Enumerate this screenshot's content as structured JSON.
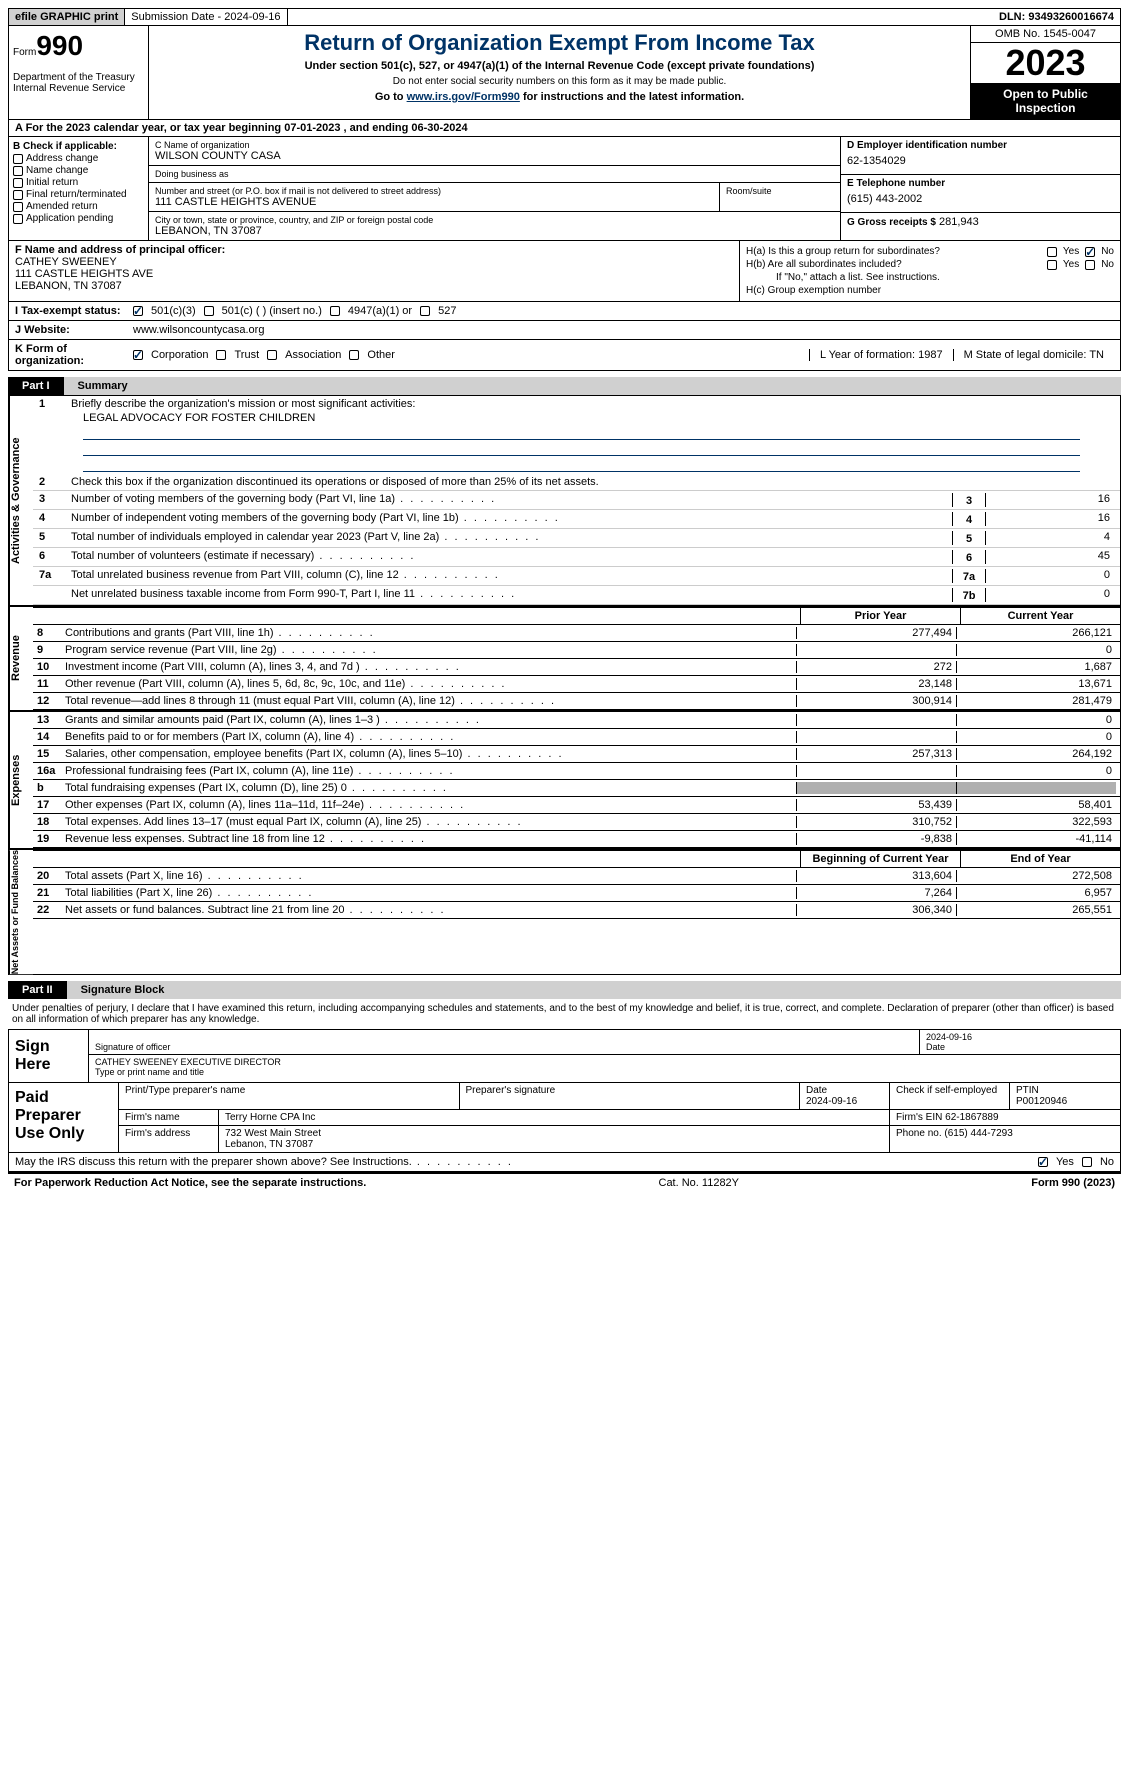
{
  "colors": {
    "accent": "#003366",
    "shade": "#b0b0b0",
    "btn_bg": "#d0d0d0"
  },
  "topbar": {
    "efile": "efile GRAPHIC print",
    "subdate": "Submission Date - 2024-09-16",
    "dln": "DLN: 93493260016674"
  },
  "header": {
    "form_prefix": "Form",
    "form_num": "990",
    "dept": "Department of the Treasury\nInternal Revenue Service",
    "title": "Return of Organization Exempt From Income Tax",
    "sub1": "Under section 501(c), 527, or 4947(a)(1) of the Internal Revenue Code (except private foundations)",
    "sub2": "Do not enter social security numbers on this form as it may be made public.",
    "sub3_pre": "Go to ",
    "sub3_link": "www.irs.gov/Form990",
    "sub3_post": " for instructions and the latest information.",
    "omb": "OMB No. 1545-0047",
    "year": "2023",
    "inspect": "Open to Public Inspection"
  },
  "period": {
    "pre": "A For the 2023 calendar year, or tax year beginning ",
    "begin": "07-01-2023",
    "mid": " , and ending ",
    "end": "06-30-2024"
  },
  "colB": {
    "hdr": "B Check if applicable:",
    "items": [
      "Address change",
      "Name change",
      "Initial return",
      "Final return/terminated",
      "Amended return",
      "Application pending"
    ]
  },
  "colC": {
    "name_lbl": "C Name of organization",
    "name": "WILSON COUNTY CASA",
    "dba_lbl": "Doing business as",
    "dba": "",
    "street_lbl": "Number and street (or P.O. box if mail is not delivered to street address)",
    "street": "111 CASTLE HEIGHTS AVENUE",
    "suite_lbl": "Room/suite",
    "suite": "",
    "city_lbl": "City or town, state or province, country, and ZIP or foreign postal code",
    "city": "LEBANON, TN  37087"
  },
  "colD": {
    "ein_lbl": "D Employer identification number",
    "ein": "62-1354029",
    "phone_lbl": "E Telephone number",
    "phone": "(615) 443-2002",
    "gross_lbl": "G Gross receipts $",
    "gross": "281,943"
  },
  "officer": {
    "lbl": "F  Name and address of principal officer:",
    "name": "CATHEY SWEENEY",
    "addr1": "111 CASTLE HEIGHTS AVE",
    "addr2": "LEBANON, TN  37087"
  },
  "groupH": {
    "ha": "H(a)  Is this a group return for subordinates?",
    "hb": "H(b)  Are all subordinates included?",
    "hb_note": "If \"No,\" attach a list. See instructions.",
    "hc": "H(c)  Group exemption number",
    "ha_yes": false,
    "ha_no": true,
    "hb_yes": false,
    "hb_no": false
  },
  "status": {
    "lbl": "I  Tax-exempt status:",
    "c3": "501(c)(3)",
    "c": "501(c) (  ) (insert no.)",
    "a1": "4947(a)(1) or",
    "s527": "527",
    "c3_checked": true
  },
  "website": {
    "lbl": "J  Website:",
    "val": "www.wilsoncountycasa.org"
  },
  "korg": {
    "lbl": "K Form of organization:",
    "corp": "Corporation",
    "trust": "Trust",
    "assoc": "Association",
    "other": "Other",
    "corp_checked": true,
    "yof_lbl": "L Year of formation:",
    "yof": "1987",
    "dom_lbl": "M State of legal domicile:",
    "dom": "TN"
  },
  "part1": {
    "num": "Part I",
    "title": "Summary",
    "l1": "Briefly describe the organization's mission or most significant activities:",
    "mission": "LEGAL ADVOCACY FOR FOSTER CHILDREN",
    "l2": "Check this box      if the organization discontinued its operations or disposed of more than 25% of its net assets.",
    "gov": [
      {
        "n": "3",
        "d": "Number of voting members of the governing body (Part VI, line 1a)",
        "i": "3",
        "v": "16"
      },
      {
        "n": "4",
        "d": "Number of independent voting members of the governing body (Part VI, line 1b)",
        "i": "4",
        "v": "16"
      },
      {
        "n": "5",
        "d": "Total number of individuals employed in calendar year 2023 (Part V, line 2a)",
        "i": "5",
        "v": "4"
      },
      {
        "n": "6",
        "d": "Total number of volunteers (estimate if necessary)",
        "i": "6",
        "v": "45"
      },
      {
        "n": "7a",
        "d": "Total unrelated business revenue from Part VIII, column (C), line 12",
        "i": "7a",
        "v": "0"
      },
      {
        "n": "",
        "d": "Net unrelated business taxable income from Form 990-T, Part I, line 11",
        "i": "7b",
        "v": "0"
      }
    ],
    "col_hdr": {
      "prior": "Prior Year",
      "cur": "Current Year",
      "boy": "Beginning of Current Year",
      "eoy": "End of Year"
    },
    "revenue": [
      {
        "n": "8",
        "d": "Contributions and grants (Part VIII, line 1h)",
        "p": "277,494",
        "c": "266,121"
      },
      {
        "n": "9",
        "d": "Program service revenue (Part VIII, line 2g)",
        "p": "",
        "c": "0"
      },
      {
        "n": "10",
        "d": "Investment income (Part VIII, column (A), lines 3, 4, and 7d )",
        "p": "272",
        "c": "1,687"
      },
      {
        "n": "11",
        "d": "Other revenue (Part VIII, column (A), lines 5, 6d, 8c, 9c, 10c, and 11e)",
        "p": "23,148",
        "c": "13,671"
      },
      {
        "n": "12",
        "d": "Total revenue—add lines 8 through 11 (must equal Part VIII, column (A), line 12)",
        "p": "300,914",
        "c": "281,479"
      }
    ],
    "expenses": [
      {
        "n": "13",
        "d": "Grants and similar amounts paid (Part IX, column (A), lines 1–3 )",
        "p": "",
        "c": "0"
      },
      {
        "n": "14",
        "d": "Benefits paid to or for members (Part IX, column (A), line 4)",
        "p": "",
        "c": "0"
      },
      {
        "n": "15",
        "d": "Salaries, other compensation, employee benefits (Part IX, column (A), lines 5–10)",
        "p": "257,313",
        "c": "264,192"
      },
      {
        "n": "16a",
        "d": "Professional fundraising fees (Part IX, column (A), line 11e)",
        "p": "",
        "c": "0"
      },
      {
        "n": "b",
        "d": "Total fundraising expenses (Part IX, column (D), line 25) 0",
        "p": "shade",
        "c": "shade"
      },
      {
        "n": "17",
        "d": "Other expenses (Part IX, column (A), lines 11a–11d, 11f–24e)",
        "p": "53,439",
        "c": "58,401"
      },
      {
        "n": "18",
        "d": "Total expenses. Add lines 13–17 (must equal Part IX, column (A), line 25)",
        "p": "310,752",
        "c": "322,593"
      },
      {
        "n": "19",
        "d": "Revenue less expenses. Subtract line 18 from line 12",
        "p": "-9,838",
        "c": "-41,114"
      }
    ],
    "netassets": [
      {
        "n": "20",
        "d": "Total assets (Part X, line 16)",
        "p": "313,604",
        "c": "272,508"
      },
      {
        "n": "21",
        "d": "Total liabilities (Part X, line 26)",
        "p": "7,264",
        "c": "6,957"
      },
      {
        "n": "22",
        "d": "Net assets or fund balances. Subtract line 21 from line 20",
        "p": "306,340",
        "c": "265,551"
      }
    ],
    "tabs": {
      "gov": "Activities & Governance",
      "rev": "Revenue",
      "exp": "Expenses",
      "na": "Net Assets or Fund Balances"
    }
  },
  "part2": {
    "num": "Part II",
    "title": "Signature Block",
    "decl": "Under penalties of perjury, I declare that I have examined this return, including accompanying schedules and statements, and to the best of my knowledge and belief, it is true, correct, and complete. Declaration of preparer (other than officer) is based on all information of which preparer has any knowledge."
  },
  "sign": {
    "here": "Sign Here",
    "sig_lbl": "Signature of officer",
    "date_lbl": "Date",
    "date": "2024-09-16",
    "name": "CATHEY SWEENEY  EXECUTIVE DIRECTOR",
    "name_lbl": "Type or print name and title"
  },
  "prep": {
    "lbl": "Paid Preparer Use Only",
    "pname_lbl": "Print/Type preparer's name",
    "pname": "",
    "psig_lbl": "Preparer's signature",
    "pdate_lbl": "Date",
    "pdate": "2024-09-16",
    "self_lbl": "Check        if self-employed",
    "ptin_lbl": "PTIN",
    "ptin": "P00120946",
    "firm_lbl": "Firm's name",
    "firm": "Terry Horne CPA Inc",
    "fein_lbl": "Firm's EIN",
    "fein": "62-1867889",
    "faddr_lbl": "Firm's address",
    "faddr": "732 West Main Street\nLebanon, TN  37087",
    "fphone_lbl": "Phone no.",
    "fphone": "(615) 444-7293"
  },
  "discuss": {
    "q": "May the IRS discuss this return with the preparer shown above? See Instructions.",
    "yes": true,
    "no": false
  },
  "footer": {
    "left": "For Paperwork Reduction Act Notice, see the separate instructions.",
    "mid": "Cat. No. 11282Y",
    "right": "Form 990 (2023)"
  }
}
